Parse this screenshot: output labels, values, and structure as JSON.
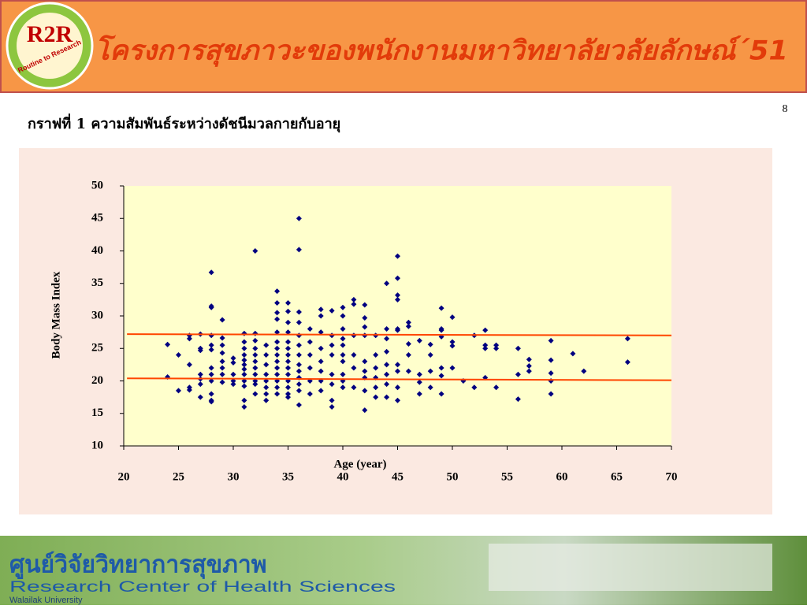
{
  "header": {
    "title": "โครงการสุขภาวะของพนักงานมหาวิทยาลัยวลัยลักษณ์´51",
    "logo_text": "R2R",
    "logo_subtext": "Routine to Research"
  },
  "slide_number": "8",
  "footer": {
    "thai_name": "ศูนย์วิจัยวิทยาการสุขภาพ",
    "english_name": "Research Center of Health Sciences",
    "university": "Walailak University"
  },
  "chart_data": {
    "type": "scatter",
    "title": "กราฟที่ 1  ความสัมพันธ์ระหว่างดัชนีมวลกายกับอายุ",
    "x_label": "Age (year)",
    "y_label": "Body Mass Index",
    "color": "#000080",
    "xlim": [
      20,
      70
    ],
    "xticks": [
      20,
      25,
      30,
      35,
      40,
      45,
      50,
      55,
      60,
      65,
      70
    ],
    "ylim": [
      10,
      50
    ],
    "yticks": [
      10,
      15,
      20,
      25,
      30,
      35,
      40,
      45,
      50
    ],
    "x": [
      24,
      24,
      25,
      25,
      26,
      26,
      26,
      26,
      26,
      27,
      27,
      27,
      27,
      27,
      27,
      27,
      28,
      28,
      28,
      28,
      28,
      28,
      28,
      28,
      28,
      28,
      28,
      28,
      29,
      29,
      29,
      29,
      29,
      29,
      29,
      29,
      30,
      30,
      30,
      30,
      30,
      31,
      31,
      31,
      31,
      31,
      31,
      31,
      31,
      31,
      31,
      31,
      31,
      32,
      32,
      32,
      32,
      32,
      32,
      32,
      32,
      32,
      32,
      32,
      33,
      33,
      33,
      33,
      33,
      33,
      33,
      33,
      34,
      34,
      34,
      34,
      34,
      34,
      34,
      34,
      34,
      34,
      34,
      34,
      34,
      34,
      35,
      35,
      35,
      35,
      35,
      35,
      35,
      35,
      35,
      35,
      35,
      35,
      35,
      35,
      36,
      36,
      36,
      36,
      36,
      36,
      36,
      36,
      36,
      36,
      36,
      36,
      36,
      37,
      37,
      37,
      37,
      37,
      37,
      38,
      38,
      38,
      38,
      38,
      38,
      38,
      38,
      39,
      39,
      39,
      39,
      39,
      39,
      39,
      39,
      40,
      40,
      40,
      40,
      40,
      40,
      40,
      40,
      40,
      40,
      41,
      41,
      41,
      41,
      41,
      41,
      42,
      42,
      42,
      42,
      42,
      42,
      42,
      42,
      42,
      43,
      43,
      43,
      43,
      43,
      43,
      44,
      44,
      44,
      44,
      44,
      44,
      44,
      44,
      45,
      45,
      45,
      45,
      45,
      45,
      45,
      45,
      45,
      45,
      46,
      46,
      46,
      46,
      46,
      47,
      47,
      47,
      47,
      48,
      48,
      48,
      48,
      49,
      49,
      49,
      49,
      49,
      49,
      49,
      50,
      50,
      50,
      50,
      51,
      52,
      52,
      53,
      53,
      53,
      53,
      54,
      54,
      54,
      56,
      56,
      56,
      57,
      57,
      57,
      59,
      59,
      59,
      59,
      59,
      61,
      62,
      66,
      66
    ],
    "values": [
      25.6,
      20.6,
      24.0,
      18.5,
      26.5,
      27.0,
      22.5,
      19.0,
      18.6,
      27.2,
      25.0,
      24.7,
      21.0,
      20.3,
      19.5,
      17.5,
      36.7,
      31.5,
      31.3,
      27.0,
      25.5,
      24.8,
      22.0,
      21.0,
      20.0,
      18.0,
      17.0,
      16.8,
      29.4,
      26.6,
      25.5,
      24.3,
      23.0,
      22.0,
      21.0,
      19.8,
      23.5,
      22.8,
      21.0,
      20.0,
      19.5,
      27.3,
      26.0,
      25.0,
      24.0,
      23.2,
      22.5,
      21.8,
      21.0,
      20.0,
      19.2,
      17.0,
      16.0,
      40.0,
      27.3,
      26.2,
      25.0,
      24.0,
      23.0,
      22.0,
      21.0,
      20.0,
      19.5,
      18.0,
      25.5,
      24.0,
      22.5,
      21.0,
      20.0,
      19.0,
      18.0,
      17.0,
      33.8,
      32.0,
      30.5,
      29.5,
      27.5,
      26.0,
      25.0,
      24.0,
      23.0,
      22.0,
      21.0,
      20.0,
      19.0,
      18.0,
      32.0,
      30.7,
      29.0,
      27.5,
      26.0,
      25.0,
      24.0,
      23.0,
      22.0,
      21.0,
      20.0,
      19.0,
      18.0,
      17.5,
      45.0,
      40.2,
      30.6,
      29.0,
      27.0,
      25.5,
      24.0,
      22.5,
      21.5,
      20.5,
      19.5,
      18.5,
      16.3,
      28.0,
      26.0,
      24.0,
      22.0,
      20.0,
      18.0,
      31.0,
      30.0,
      27.5,
      25.0,
      23.0,
      21.5,
      20.0,
      18.5,
      30.8,
      27.0,
      25.5,
      24.0,
      21.0,
      19.5,
      17.0,
      16.0,
      31.3,
      30.0,
      28.0,
      26.5,
      25.5,
      24.0,
      23.0,
      21.0,
      20.0,
      19.0,
      32.5,
      31.8,
      27.0,
      24.0,
      22.0,
      19.0,
      31.7,
      29.7,
      28.3,
      27.0,
      23.0,
      21.5,
      20.5,
      18.5,
      15.5,
      27.0,
      24.0,
      22.0,
      20.5,
      19.0,
      17.5,
      35.0,
      28.0,
      26.5,
      24.5,
      22.5,
      21.0,
      19.5,
      17.5,
      39.2,
      35.8,
      33.2,
      32.5,
      28.0,
      27.8,
      22.5,
      21.5,
      19.0,
      17.0,
      29.0,
      28.4,
      25.7,
      24.0,
      21.5,
      26.2,
      21.0,
      19.8,
      18.0,
      25.6,
      24.0,
      21.5,
      19.0,
      31.2,
      28.0,
      27.8,
      26.8,
      22.0,
      20.8,
      18.0,
      29.8,
      26.0,
      25.4,
      22.0,
      20.0,
      27.0,
      19.0,
      27.8,
      25.5,
      25.0,
      20.5,
      25.5,
      25.0,
      19.0,
      25.0,
      21.0,
      17.2,
      23.3,
      22.3,
      21.5,
      26.2,
      23.2,
      21.2,
      20.0,
      18.0,
      24.2,
      21.5,
      26.5,
      22.9
    ],
    "reference_lines": [
      {
        "x": [
          20.3,
          70
        ],
        "y": [
          27.2,
          27.0
        ]
      },
      {
        "x": [
          20.3,
          70
        ],
        "y": [
          20.4,
          20.1
        ]
      }
    ],
    "reference_color": "#ff4500"
  }
}
